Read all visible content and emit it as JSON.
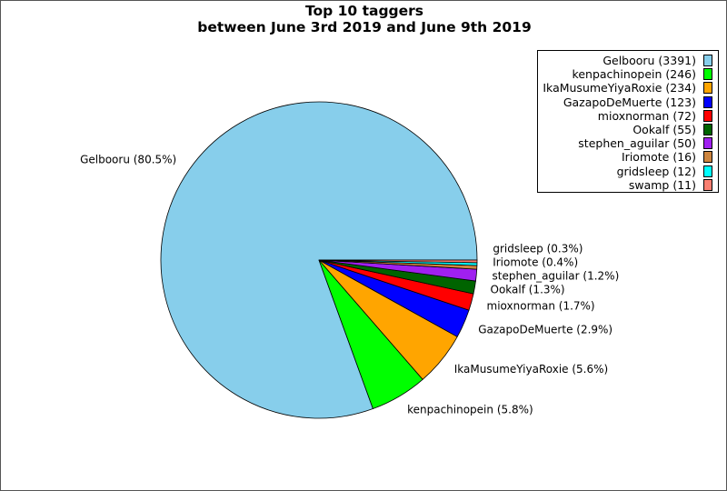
{
  "chart_data": {
    "type": "pie",
    "title": [
      "Top 10 taggers",
      "between June 3rd 2019 and June 9th 2019"
    ],
    "start_angle_deg": 0,
    "direction": "counterclockwise",
    "legend_placement": "top-right",
    "slices": [
      {
        "name": "Gelbooru",
        "value": 3391,
        "color": "#87ceeb",
        "label": "Gelbooru (80.5%)",
        "legend": "Gelbooru (3391)"
      },
      {
        "name": "kenpachinopein",
        "value": 246,
        "color": "#00ff00",
        "label": "kenpachinopein (5.8%)",
        "legend": "kenpachinopein (246)"
      },
      {
        "name": "IkaMusumeYiyaRoxie",
        "value": 234,
        "color": "#ffa500",
        "label": "IkaMusumeYiyaRoxie (5.6%)",
        "legend": "IkaMusumeYiyaRoxie (234)"
      },
      {
        "name": "GazapoDeMuerte",
        "value": 123,
        "color": "#0000ff",
        "label": "GazapoDeMuerte (2.9%)",
        "legend": "GazapoDeMuerte (123)"
      },
      {
        "name": "mioxnorman",
        "value": 72,
        "color": "#ff0000",
        "label": "mioxnorman (1.7%)",
        "legend": "mioxnorman (72)"
      },
      {
        "name": "Ookalf",
        "value": 55,
        "color": "#006400",
        "label": "Ookalf (1.3%)",
        "legend": "Ookalf (55)"
      },
      {
        "name": "stephen_aguilar",
        "value": 50,
        "color": "#a020f0",
        "label": "stephen_aguilar (1.2%)",
        "legend": "stephen_aguilar (50)"
      },
      {
        "name": "Iriomote",
        "value": 16,
        "color": "#cd853f",
        "label": "Iriomote (0.4%)",
        "legend": "Iriomote (16)"
      },
      {
        "name": "gridsleep",
        "value": 12,
        "color": "#00ffff",
        "label": "gridsleep (0.3%)",
        "legend": "gridsleep (12)"
      },
      {
        "name": "swamp",
        "value": 11,
        "color": "#fa8072",
        "label": "",
        "legend": "swamp (11)"
      }
    ]
  }
}
